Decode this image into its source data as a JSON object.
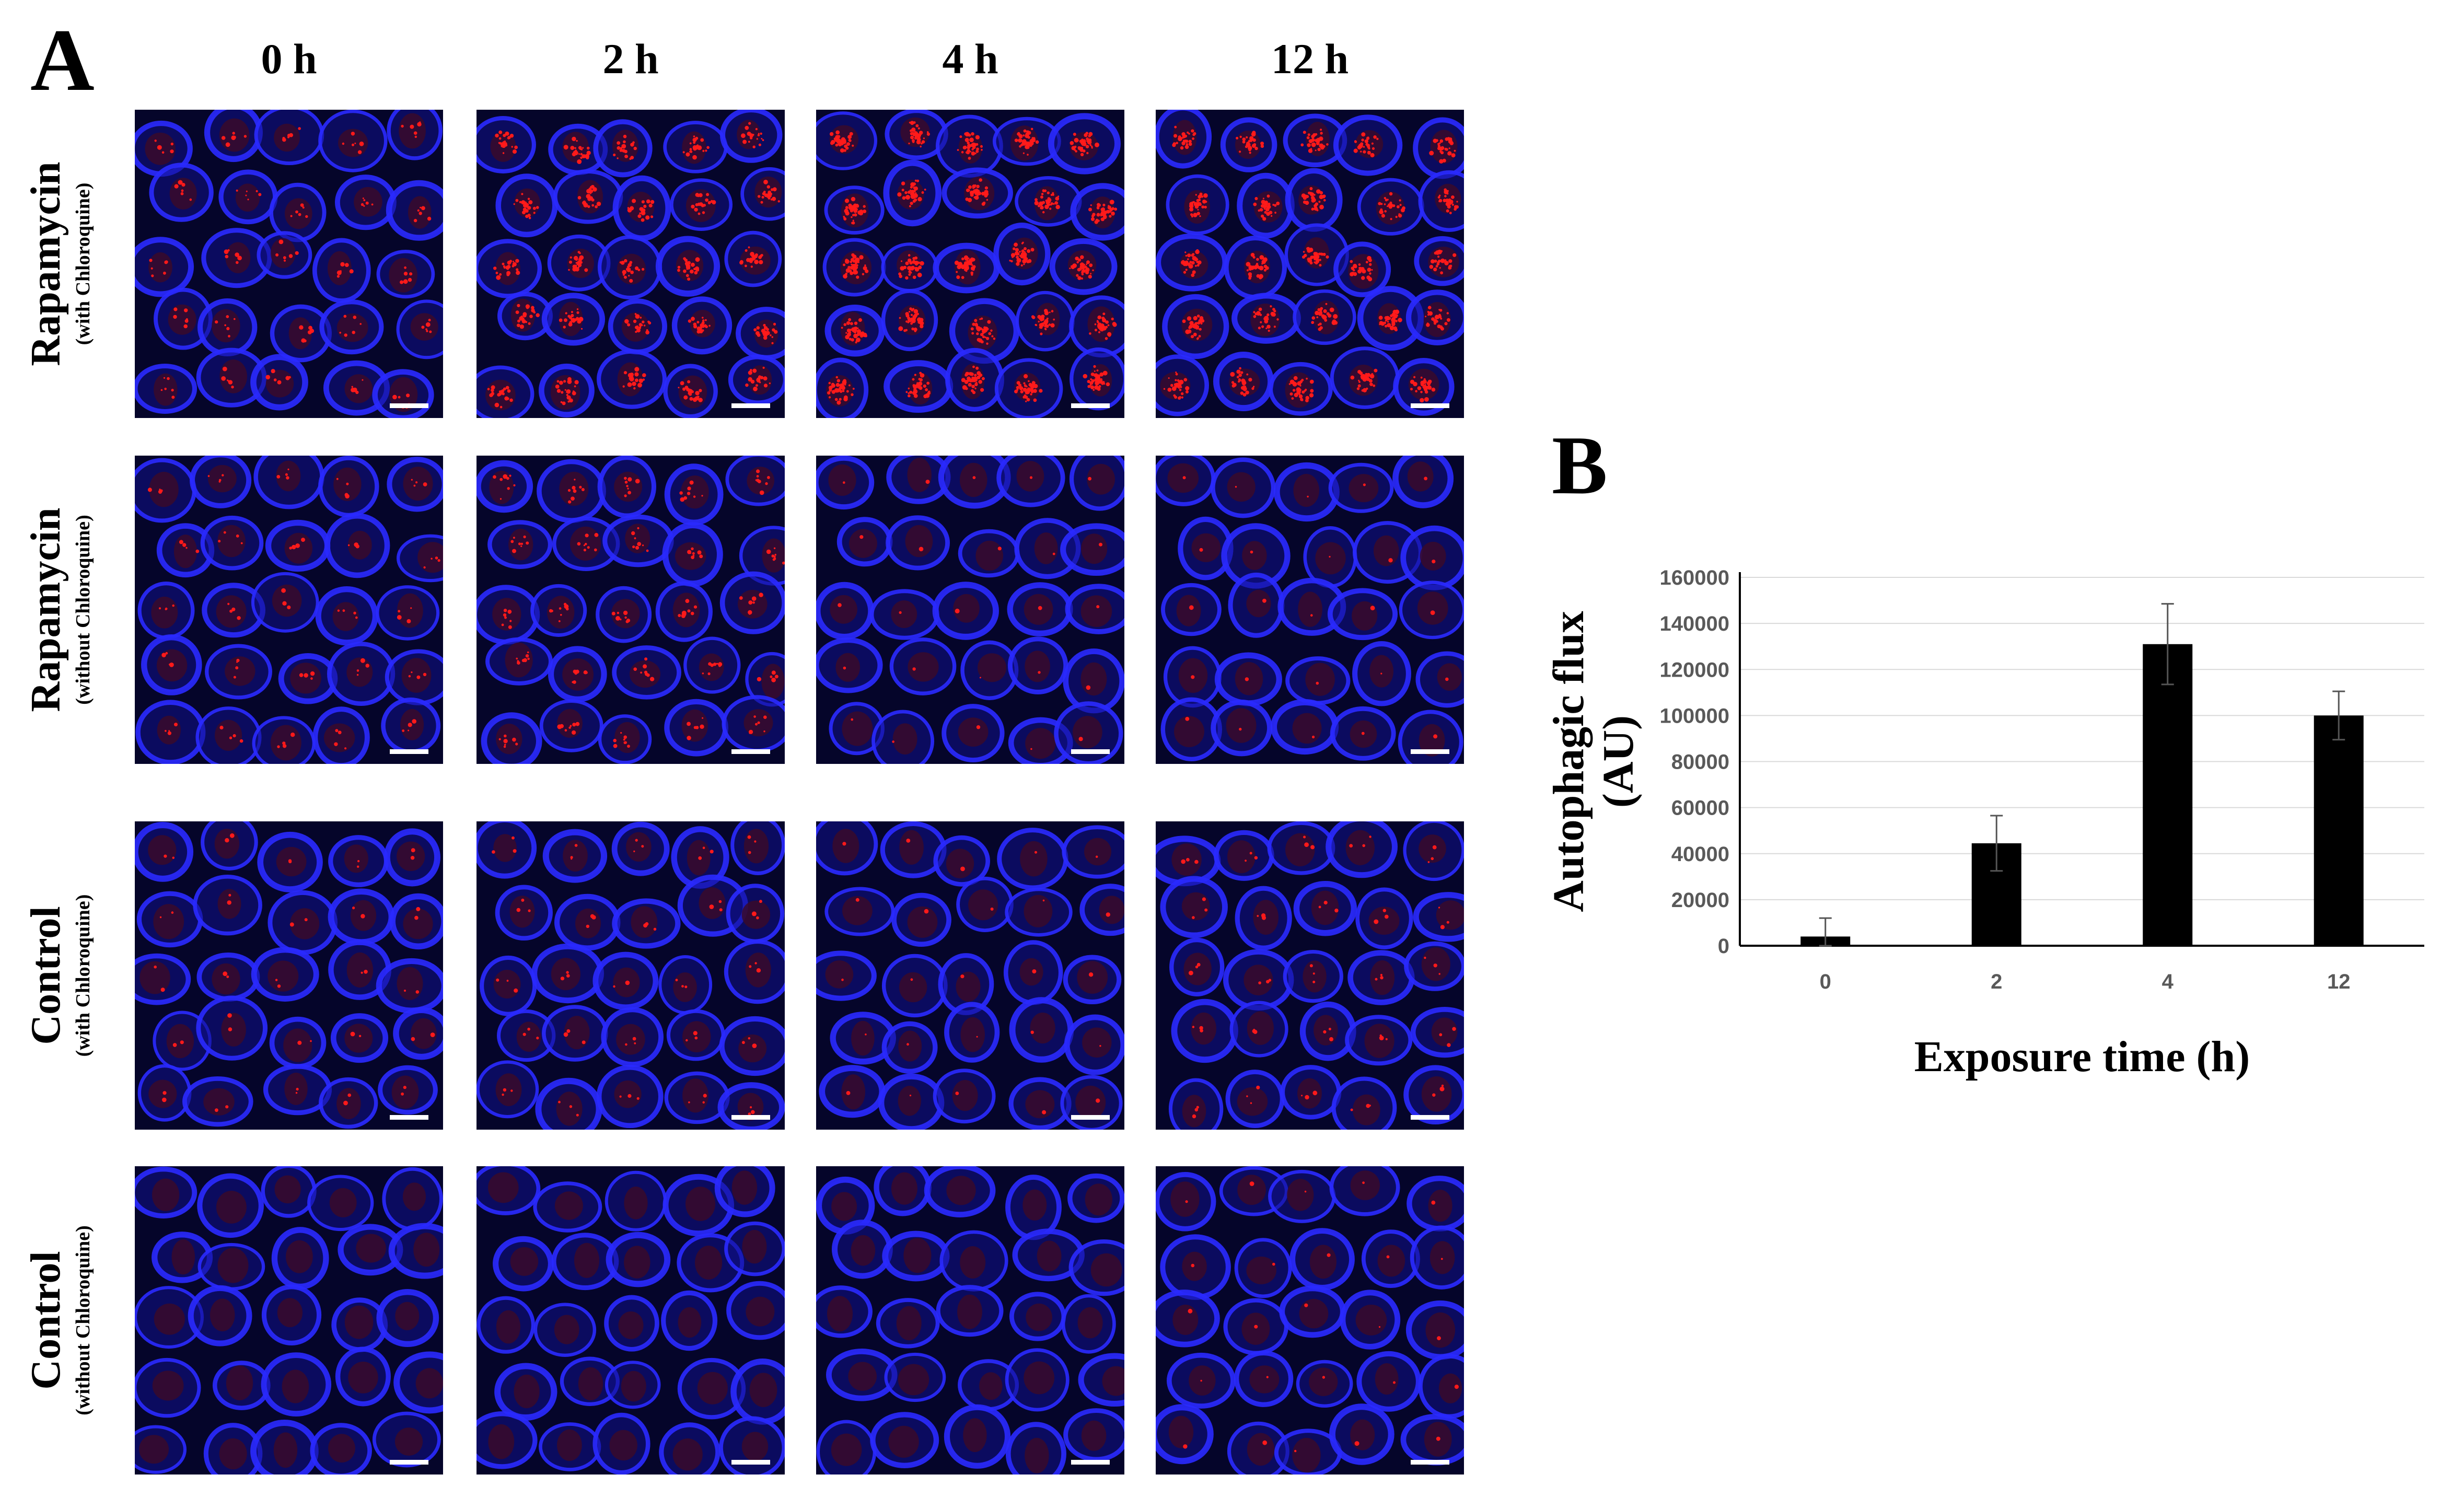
{
  "panel_a": {
    "letter": "A",
    "columns": [
      "0 h",
      "2 h",
      "4 h",
      "12 h"
    ],
    "rows": [
      {
        "title": "Rapamycin",
        "subtitle": "(with Chloroquine)",
        "red_level": [
          0.15,
          0.55,
          0.95,
          0.75
        ]
      },
      {
        "title": "Rapamycin",
        "subtitle": "(without Chloroquine)",
        "red_level": [
          0.1,
          0.2,
          0.03,
          0.03
        ]
      },
      {
        "title": "Control",
        "subtitle": "(with Chloroquine)",
        "red_level": [
          0.05,
          0.08,
          0.03,
          0.08
        ]
      },
      {
        "title": "Control",
        "subtitle": "(without Chloroquine)",
        "red_level": [
          0.01,
          0.01,
          0.0,
          0.02
        ]
      }
    ],
    "colors": {
      "membrane": "#2a2aff",
      "background": "#05052a",
      "puncta": "#ff1a1a",
      "nucleus": "#3a0a2a"
    }
  },
  "panel_b": {
    "letter": "B",
    "chart_data": {
      "type": "bar",
      "categories": [
        "0",
        "2",
        "4",
        "12"
      ],
      "values": [
        4000,
        44500,
        131000,
        100000
      ],
      "errors": [
        8000,
        12000,
        17500,
        10500
      ],
      "xlabel": "Exposure time (h)",
      "ylabel_line1": "Autophagic flux",
      "ylabel_line2": "(AU)",
      "ylim": [
        0,
        160000
      ],
      "yticks": [
        "0",
        "20000",
        "40000",
        "60000",
        "80000",
        "100000",
        "120000",
        "140000",
        "160000"
      ],
      "grid": true,
      "bar_color": "#000000"
    }
  }
}
